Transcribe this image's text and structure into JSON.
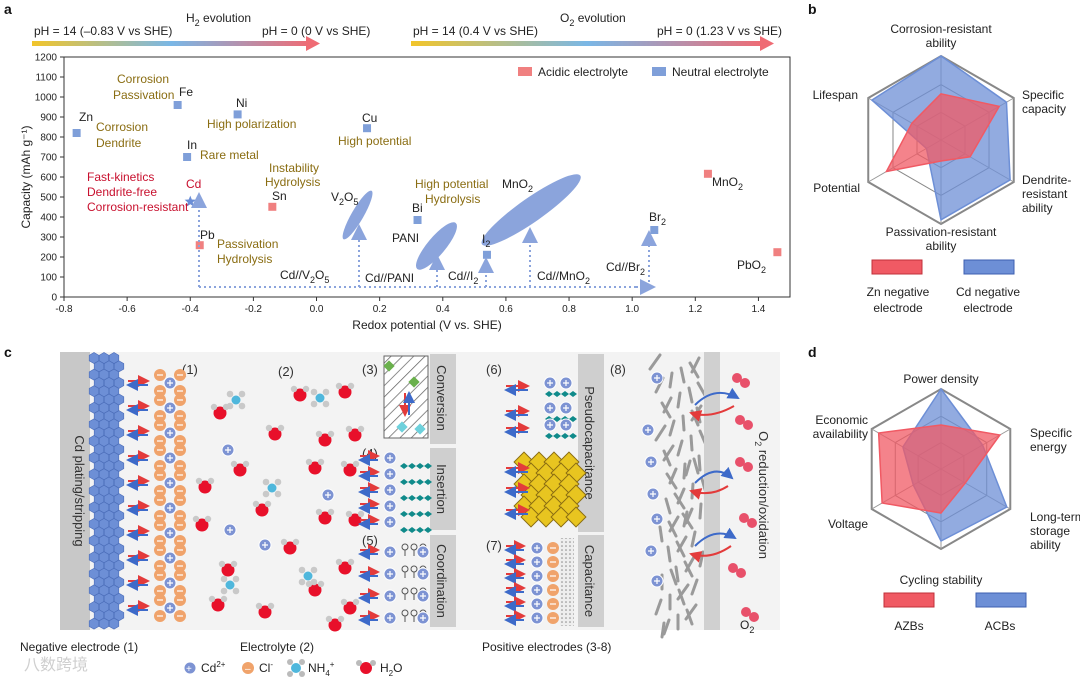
{
  "panels": {
    "a": "a",
    "b": "b",
    "c": "c",
    "d": "d"
  },
  "panel_a": {
    "h2_title": "H",
    "h2_sub": "2",
    "h2_rest": " evolution",
    "o2_title": "O",
    "o2_sub": "2",
    "o2_rest": " evolution",
    "ph14_h2": "pH = 14 (–0.83 V vs SHE)",
    "ph0_h2": "pH = 0 (0 V vs SHE)",
    "ph14_o2": "pH = 14 (0.4 V vs SHE)",
    "ph0_o2": "pH = 0 (1.23 V vs SHE)",
    "legend_acidic": "Acidic electrolyte",
    "legend_neutral": "Neutral electrolyte",
    "notes": {
      "corrosion_passivation_1": "Corrosion",
      "corrosion_passivation_2": "Passivation",
      "zn_note_1": "Corrosion",
      "zn_note_2": "Dendrite",
      "high_polarization": "High polarization",
      "rare_metal": "Rare metal",
      "high_potential": "High potential",
      "instability_1": "Instability",
      "instability_2": "Hydrolysis",
      "fast_kinetics": "Fast-kinetics",
      "dendrite_free": "Dendrite-free",
      "corrosion_resistant": "Corrosion-resistant",
      "pb_note_1": "Passivation",
      "pb_note_2": "Hydrolysis",
      "bi_note_1": "High potential",
      "bi_note_2": "Hydrolysis"
    },
    "cell_labels": [
      "Cd//V",
      "Cd//PANI",
      "Cd//I",
      "Cd//MnO",
      "Cd//Br"
    ],
    "cell_subs": [
      "2",
      "O",
      "5"
    ],
    "element_labels": {
      "zn": "Zn",
      "fe": "Fe",
      "ni": "Ni",
      "in": "In",
      "cu": "Cu",
      "cd": "Cd",
      "sn": "Sn",
      "pb": "Pb",
      "bi": "Bi",
      "pani": "PANI",
      "v": "V",
      "v_sub1": "2",
      "v_o": "O",
      "v_sub2": "5",
      "i": "I",
      "i_sub": "2",
      "mno": "MnO",
      "mno_sub": "2",
      "br": "Br",
      "br_sub": "2",
      "mno2_acid": "MnO",
      "mno2_acid_sub": "2",
      "pbo": "PbO",
      "pbo_sub": "2"
    }
  },
  "chart_data": {
    "type": "scatter",
    "title": "",
    "xlabel": "Redox potential (V vs. SHE)",
    "ylabel": "Capacity (mAh g⁻¹)",
    "xlim": [
      -0.8,
      1.5
    ],
    "ylim": [
      0,
      1200
    ],
    "x_ticks": [
      "-0.8",
      "-0.6",
      "-0.4",
      "-0.2",
      "0.0",
      "0.2",
      "0.4",
      "0.6",
      "0.8",
      "1.0",
      "1.2",
      "1.4"
    ],
    "y_ticks": [
      "0",
      "100",
      "200",
      "300",
      "400",
      "500",
      "600",
      "700",
      "800",
      "900",
      "1000",
      "1100",
      "1200"
    ],
    "series": [
      {
        "name": "Neutral electrolyte",
        "color": "#7f9fd9",
        "points": [
          {
            "label": "Zn",
            "x": -0.76,
            "y": 820
          },
          {
            "label": "Fe",
            "x": -0.44,
            "y": 960
          },
          {
            "label": "Ni",
            "x": -0.25,
            "y": 913
          },
          {
            "label": "In",
            "x": -0.41,
            "y": 700
          },
          {
            "label": "Cu",
            "x": 0.16,
            "y": 844
          },
          {
            "label": "Bi",
            "x": 0.32,
            "y": 385
          },
          {
            "label": "I2",
            "x": 0.54,
            "y": 211
          },
          {
            "label": "Br2",
            "x": 1.07,
            "y": 335
          }
        ]
      },
      {
        "name": "Acidic electrolyte",
        "color": "#f08080",
        "points": [
          {
            "label": "Sn",
            "x": -0.14,
            "y": 451
          },
          {
            "label": "Pb",
            "x": -0.37,
            "y": 259
          },
          {
            "label": "MnO2",
            "x": 1.24,
            "y": 616
          },
          {
            "label": "PbO2",
            "x": 1.46,
            "y": 224
          }
        ]
      },
      {
        "name": "Cd",
        "color": "#6b8ed6",
        "points": [
          {
            "label": "Cd",
            "x": -0.4,
            "y": 477
          }
        ]
      }
    ],
    "ellipses": [
      {
        "label": "V2O5",
        "x": 0.13,
        "y": 410
      },
      {
        "label": "PANI",
        "x": 0.38,
        "y": 255
      },
      {
        "label": "MnO2",
        "x": 0.68,
        "y": 435
      }
    ]
  },
  "panel_b": {
    "axes": [
      "Corrosion-resistant ability",
      "Specific capacity",
      "Dendrite-resistant ability",
      "Passivation-resistant ability",
      "Potential",
      "Lifespan"
    ],
    "axis_lines": [
      [
        "Corrosion-resistant",
        "ability"
      ],
      [
        "Specific",
        "capacity"
      ],
      [
        "Dendrite-",
        "resistant",
        "ability"
      ],
      [
        "Passivation-resistant",
        "ability"
      ],
      [
        "Potential"
      ],
      [
        "Lifespan"
      ]
    ],
    "series": [
      {
        "name": "Zn negative electrode",
        "lines": [
          "Zn negative",
          "electrode"
        ],
        "color": "#f05a64",
        "values": [
          0.55,
          0.8,
          0.4,
          0.25,
          0.75,
          0.4
        ]
      },
      {
        "name": "Cd negative electrode",
        "lines": [
          "Cd negative",
          "electrode"
        ],
        "color": "#6d8fd6",
        "values": [
          1.0,
          0.9,
          0.95,
          0.95,
          0.2,
          0.95
        ]
      }
    ]
  },
  "panel_d": {
    "axes": [
      "Power density",
      "Specific energy",
      "Long-term storage ability",
      "Cycling stability",
      "Voltage",
      "Economic availability"
    ],
    "axis_lines": [
      [
        "Power density"
      ],
      [
        "Specific",
        "energy"
      ],
      [
        "Long-term",
        "storage",
        "ability"
      ],
      [
        "Cycling stability"
      ],
      [
        "Voltage"
      ],
      [
        "Economic",
        "availability"
      ]
    ],
    "series": [
      {
        "name": "AZBs",
        "color": "#f05a64",
        "values": [
          0.55,
          0.85,
          0.35,
          0.55,
          0.85,
          0.9
        ]
      },
      {
        "name": "ACBs",
        "color": "#6d8fd6",
        "values": [
          1.0,
          0.6,
          0.95,
          0.9,
          0.4,
          0.55
        ]
      }
    ]
  },
  "panel_c": {
    "neg_label": "Cd plating/stripping",
    "neg_caption": "Negative electrode (1)",
    "electrolyte_caption": "Electrolyte (2)",
    "positive_caption": "Positive electrodes (3-8)",
    "nums": [
      "(1)",
      "(2)",
      "(3)",
      "(4)",
      "(5)",
      "(6)",
      "(7)",
      "(8)"
    ],
    "mech": {
      "conversion": "Conversion",
      "insertion": "Insertion",
      "coordination": "Coordination",
      "pseudocapacitance": "Pseudocapacitance",
      "capacitance": "Capacitance",
      "o2_redox": "O",
      "o2_redox_sub": "2",
      "o2_redox_rest": " reduction/oxidation",
      "o2_small": "O",
      "o2_small_sub": "2"
    },
    "legend": {
      "cd": "Cd",
      "cd_sup": "2+",
      "cl": "Cl",
      "cl_sup": "-",
      "nh": "NH",
      "nh_sub": "4",
      "nh_sup": "+",
      "h2o": "H",
      "h2o_sub": "2",
      "h2o_rest": "O"
    }
  },
  "watermark": "八数跨境"
}
